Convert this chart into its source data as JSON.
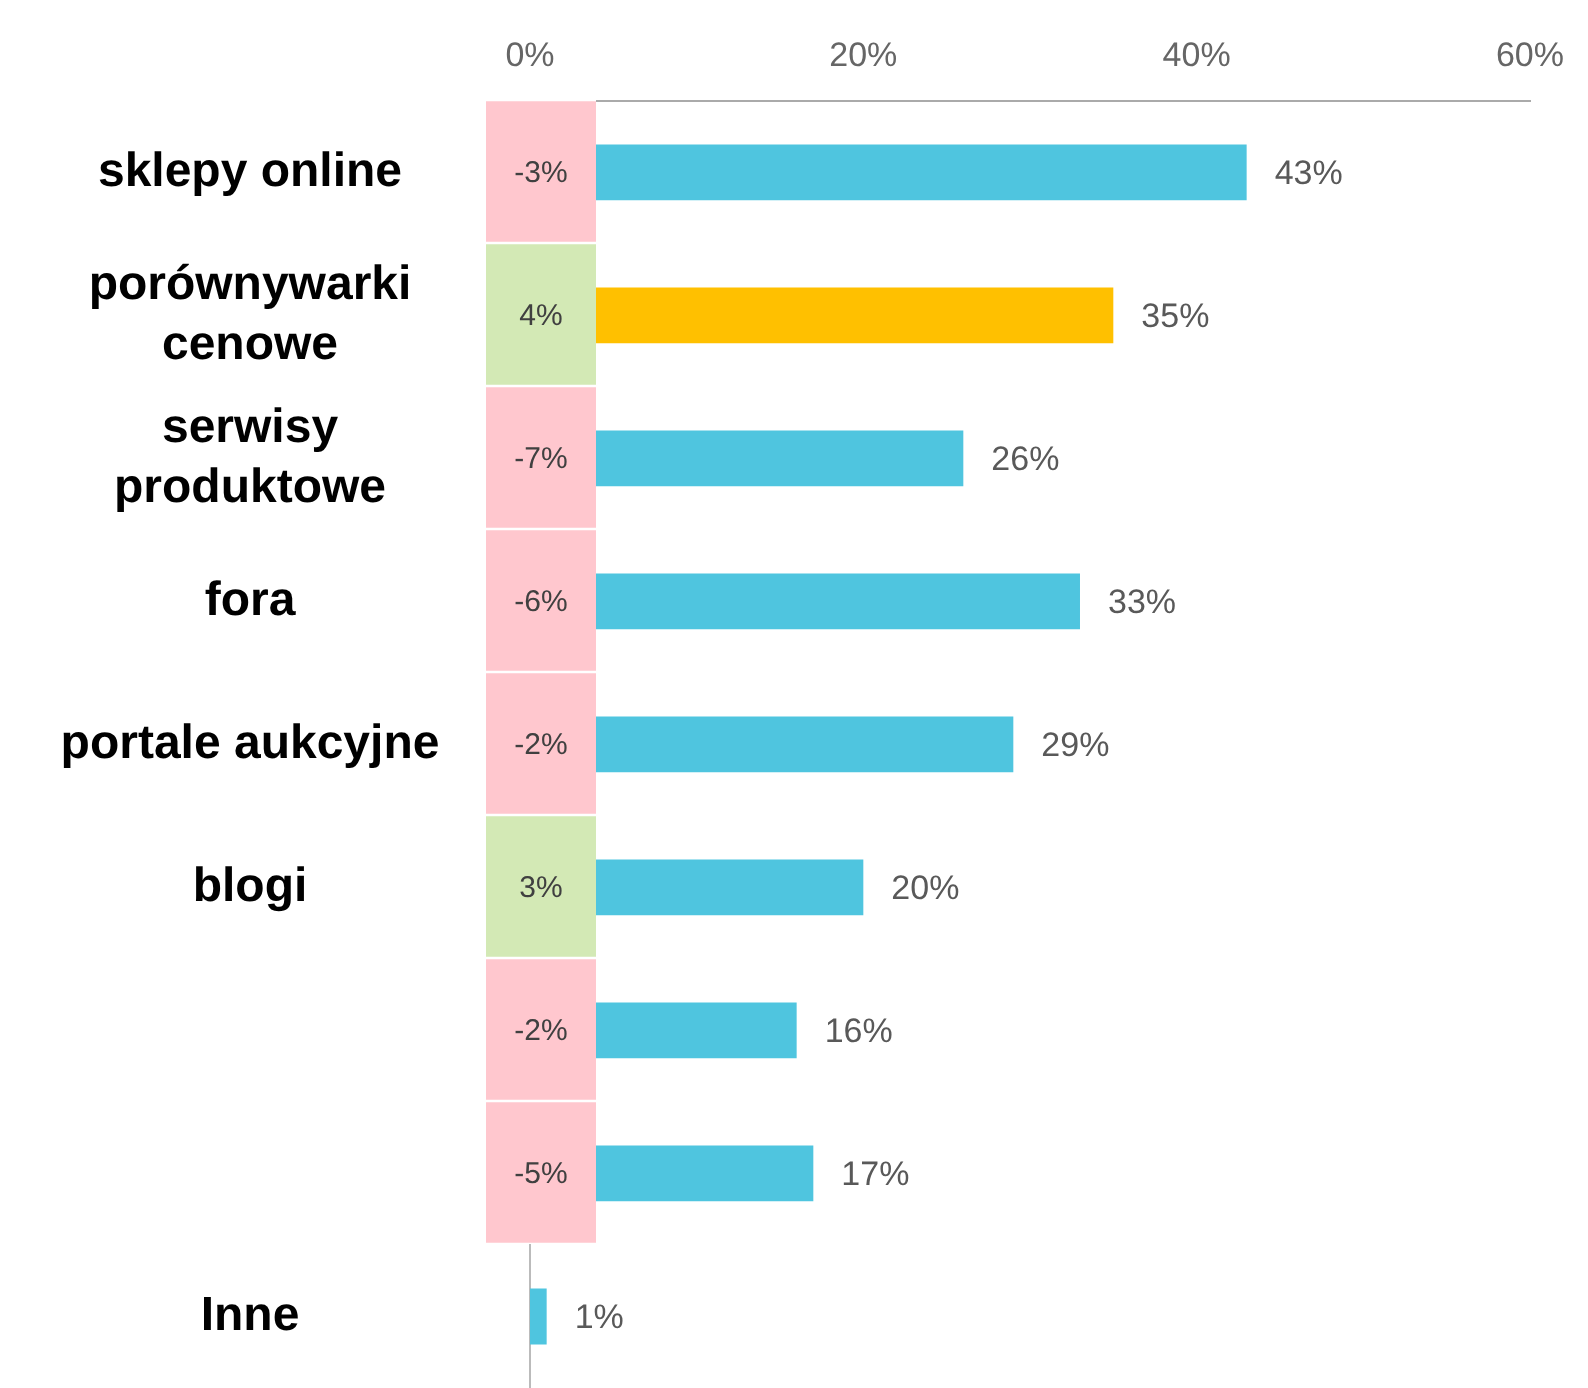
{
  "chart_data": [
    {
      "type": "bar",
      "orientation": "horizontal",
      "categories": [
        "sklepy online",
        "porównywarki cenowe",
        "serwisy produktowe",
        "fora",
        "portale aukcyjne",
        "blogi",
        null,
        null,
        "Inne"
      ],
      "series": [
        {
          "type": "bar",
          "values": [
            43,
            35,
            26,
            33,
            29,
            20,
            16,
            17,
            1
          ],
          "colors": [
            "#4fc5df",
            "#ffc000",
            "#4fc5df",
            "#4fc5df",
            "#4fc5df",
            "#4fc5df",
            "#4fc5df",
            "#4fc5df",
            "#4fc5df"
          ],
          "value_labels": [
            "43%",
            "35%",
            "26%",
            "33%",
            "29%",
            "20%",
            "16%",
            "17%",
            "1%"
          ]
        }
      ],
      "xlim": [
        0,
        60
      ],
      "xticks": [
        {
          "value": 0,
          "label": "0%"
        },
        {
          "value": 20,
          "label": "20%"
        },
        {
          "value": 40,
          "label": "40%"
        },
        {
          "value": 60,
          "label": "60%"
        }
      ],
      "grid": false,
      "legend": false
    },
    {
      "type": "heatmap",
      "categories": [
        null
      ],
      "y_categories": [
        null,
        null,
        null,
        null,
        null,
        null,
        null,
        null
      ],
      "cells": [
        [
          -3
        ],
        [
          4
        ],
        [
          -7
        ],
        [
          -6
        ],
        [
          -2
        ],
        [
          3
        ],
        [
          -2
        ],
        [
          -5
        ]
      ],
      "cell_labels": [
        [
          "-3%"
        ],
        [
          "4%"
        ],
        [
          "-7%"
        ],
        [
          "-6%"
        ],
        [
          "-2%"
        ],
        [
          "3%"
        ],
        [
          "-2%"
        ],
        [
          "-5%"
        ]
      ]
    }
  ]
}
